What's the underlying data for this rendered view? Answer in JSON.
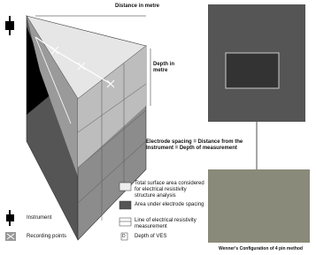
{
  "diagram": {
    "labels": {
      "distance": "Distance in metre",
      "depth": "Depth in metre",
      "spacing": "Electrode spacing = Distance from the Instrument = Depth of measurement"
    },
    "legend": [
      {
        "label": "Total surface area considered for electrical resistivity structure analysis"
      },
      {
        "label": "Area under electrode spacing"
      },
      {
        "label": "Line of electrical resistivity measurement"
      },
      {
        "label": "Instrument"
      },
      {
        "label": "Recording points"
      },
      {
        "symbol": "D",
        "label": "Depth of VES"
      }
    ],
    "photo_caption": "Wenner's Configuration of 4 pin method"
  }
}
